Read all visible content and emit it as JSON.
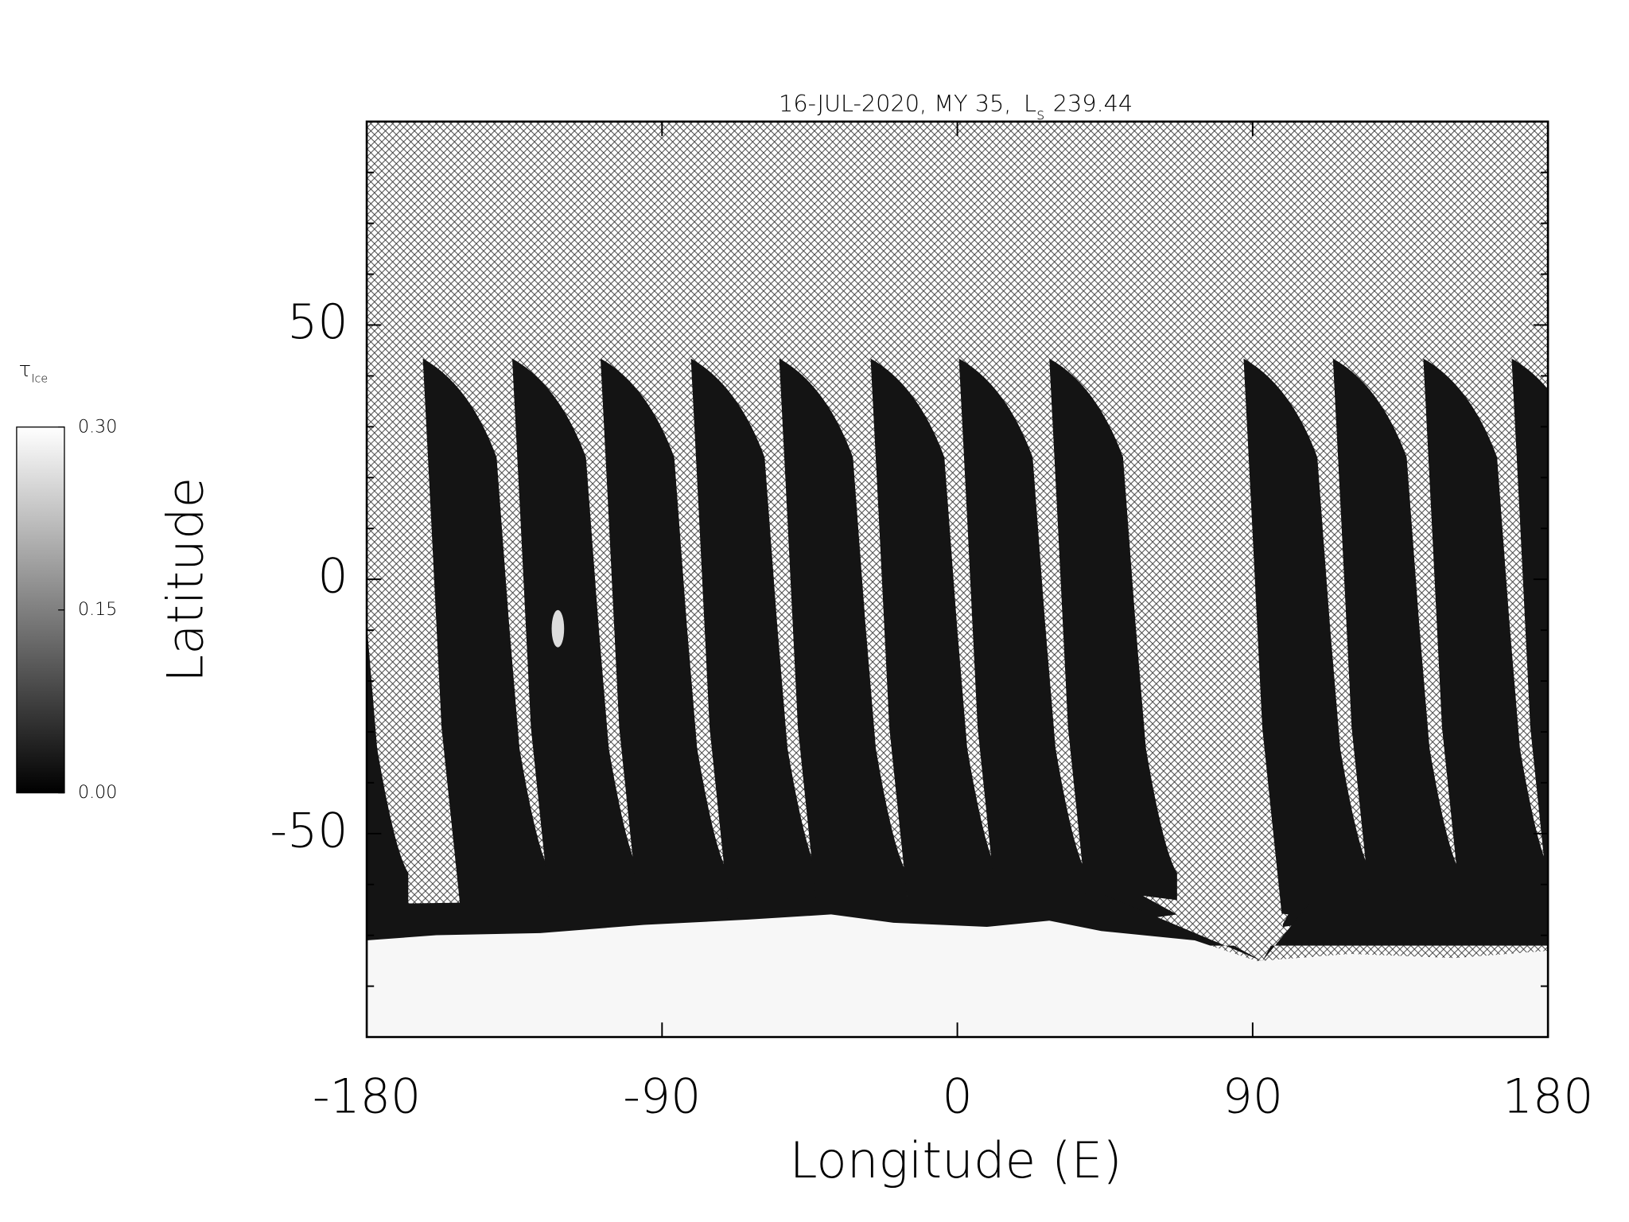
{
  "chart_data": {
    "type": "map",
    "title": [
      "16-JUL-2020, MY 35,",
      "L",
      "s",
      "239.44"
    ],
    "xlabel": "Longitude (E)",
    "ylabel": "Latitude",
    "xlim": [
      -180,
      180
    ],
    "xticks": [
      -180,
      -90,
      0,
      90,
      180
    ],
    "ylim": [
      -90,
      90
    ],
    "yticks": [
      -50,
      0,
      50
    ],
    "yminorticks": [
      -80,
      -70,
      -60,
      -40,
      -30,
      -20,
      -10,
      10,
      20,
      30,
      40,
      60,
      70,
      80
    ],
    "colorbar": {
      "label": [
        "τ",
        "Ice"
      ],
      "lim": [
        0,
        0.3
      ],
      "ticks": [
        {
          "value": 0,
          "label": "0.00"
        },
        {
          "value": 0.15,
          "label": "0.15"
        },
        {
          "value": 0.3,
          "label": "0.30"
        }
      ],
      "colors": [
        "#000000",
        "#ffffff"
      ]
    }
  }
}
